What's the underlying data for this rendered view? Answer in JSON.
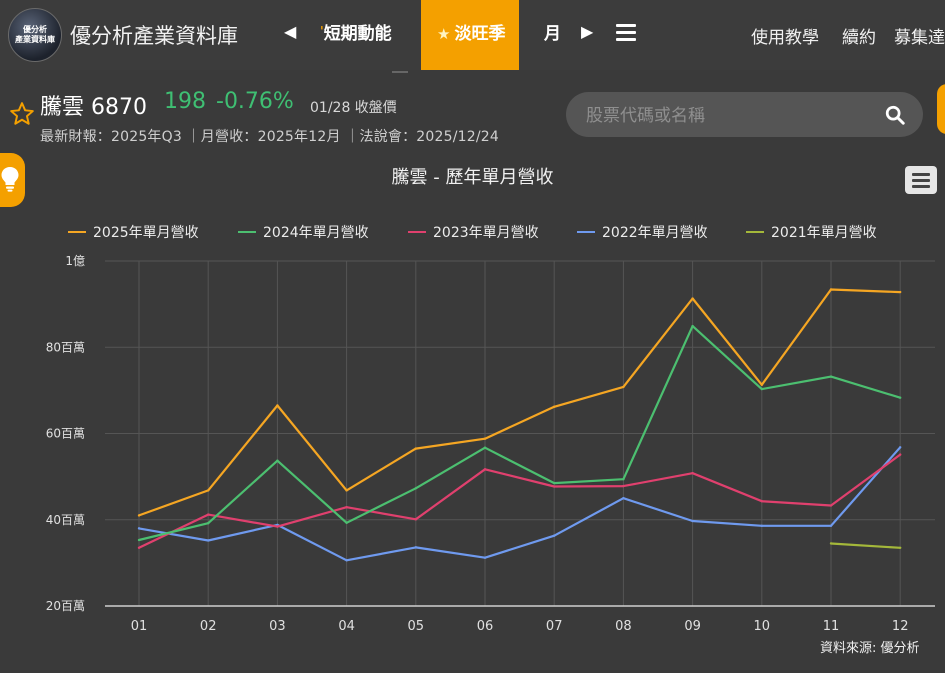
{
  "nav": {
    "logo_line1": "優分析",
    "logo_line2": "產業資料庫",
    "site_title": "優分析產業資料庫",
    "tab_prev": "短期動能",
    "tab_active": "淡旺季",
    "tab_next": "月",
    "links": [
      "使用教學",
      "續約",
      "募集達"
    ]
  },
  "stock": {
    "name": "騰雲 6870",
    "price": "198",
    "change": "-0.76%",
    "date": "01/28 收盤價",
    "meta": "最新財報：2025年Q3 ｜月營收：2025年12月 ｜法說會：2025/12/24"
  },
  "search": {
    "placeholder": "股票代碼或名稱"
  },
  "colors": {
    "accent": "#f4a000",
    "positive": "#3fbf73",
    "series_2025": "#f5a623",
    "series_2024": "#4cbf70",
    "series_2023": "#e0406e",
    "series_2022": "#6f9aef",
    "series_2021": "#a4b83a"
  },
  "chart_data": {
    "type": "line",
    "title": "騰雲 - 歷年單月營收",
    "categories": [
      "01",
      "02",
      "03",
      "04",
      "05",
      "06",
      "07",
      "08",
      "09",
      "10",
      "11",
      "12"
    ],
    "y_ticks": [
      {
        "value": 20000000,
        "label": "20百萬"
      },
      {
        "value": 40000000,
        "label": "40百萬"
      },
      {
        "value": 60000000,
        "label": "60百萬"
      },
      {
        "value": 80000000,
        "label": "80百萬"
      },
      {
        "value": 100000000,
        "label": "1億"
      }
    ],
    "ylim": [
      20000000,
      100000000
    ],
    "grid": true,
    "legend_position": "top",
    "series": [
      {
        "name": "2025年單月營收",
        "color": "#f5a623",
        "values": [
          41000000,
          46800000,
          66500000,
          46800000,
          56500000,
          58800000,
          66200000,
          70800000,
          91300000,
          71300000,
          93400000,
          92800000
        ]
      },
      {
        "name": "2024年單月營收",
        "color": "#4cbf70",
        "values": [
          35300000,
          39200000,
          53700000,
          39300000,
          47300000,
          56700000,
          48500000,
          49400000,
          84900000,
          70300000,
          73200000,
          68300000
        ]
      },
      {
        "name": "2023年單月營收",
        "color": "#e0406e",
        "values": [
          33500000,
          41200000,
          38400000,
          42900000,
          40100000,
          51700000,
          47700000,
          47800000,
          50800000,
          44300000,
          43300000,
          55100000
        ]
      },
      {
        "name": "2022年單月營收",
        "color": "#6f9aef",
        "values": [
          38000000,
          35200000,
          38800000,
          30600000,
          33600000,
          31200000,
          36300000,
          45000000,
          39700000,
          38600000,
          38600000,
          56800000
        ]
      },
      {
        "name": "2021年單月營收",
        "color": "#a4b83a",
        "values": [
          null,
          null,
          null,
          null,
          null,
          null,
          null,
          null,
          null,
          null,
          34500000,
          33500000
        ]
      }
    ],
    "source": "資料來源: 優分析"
  }
}
